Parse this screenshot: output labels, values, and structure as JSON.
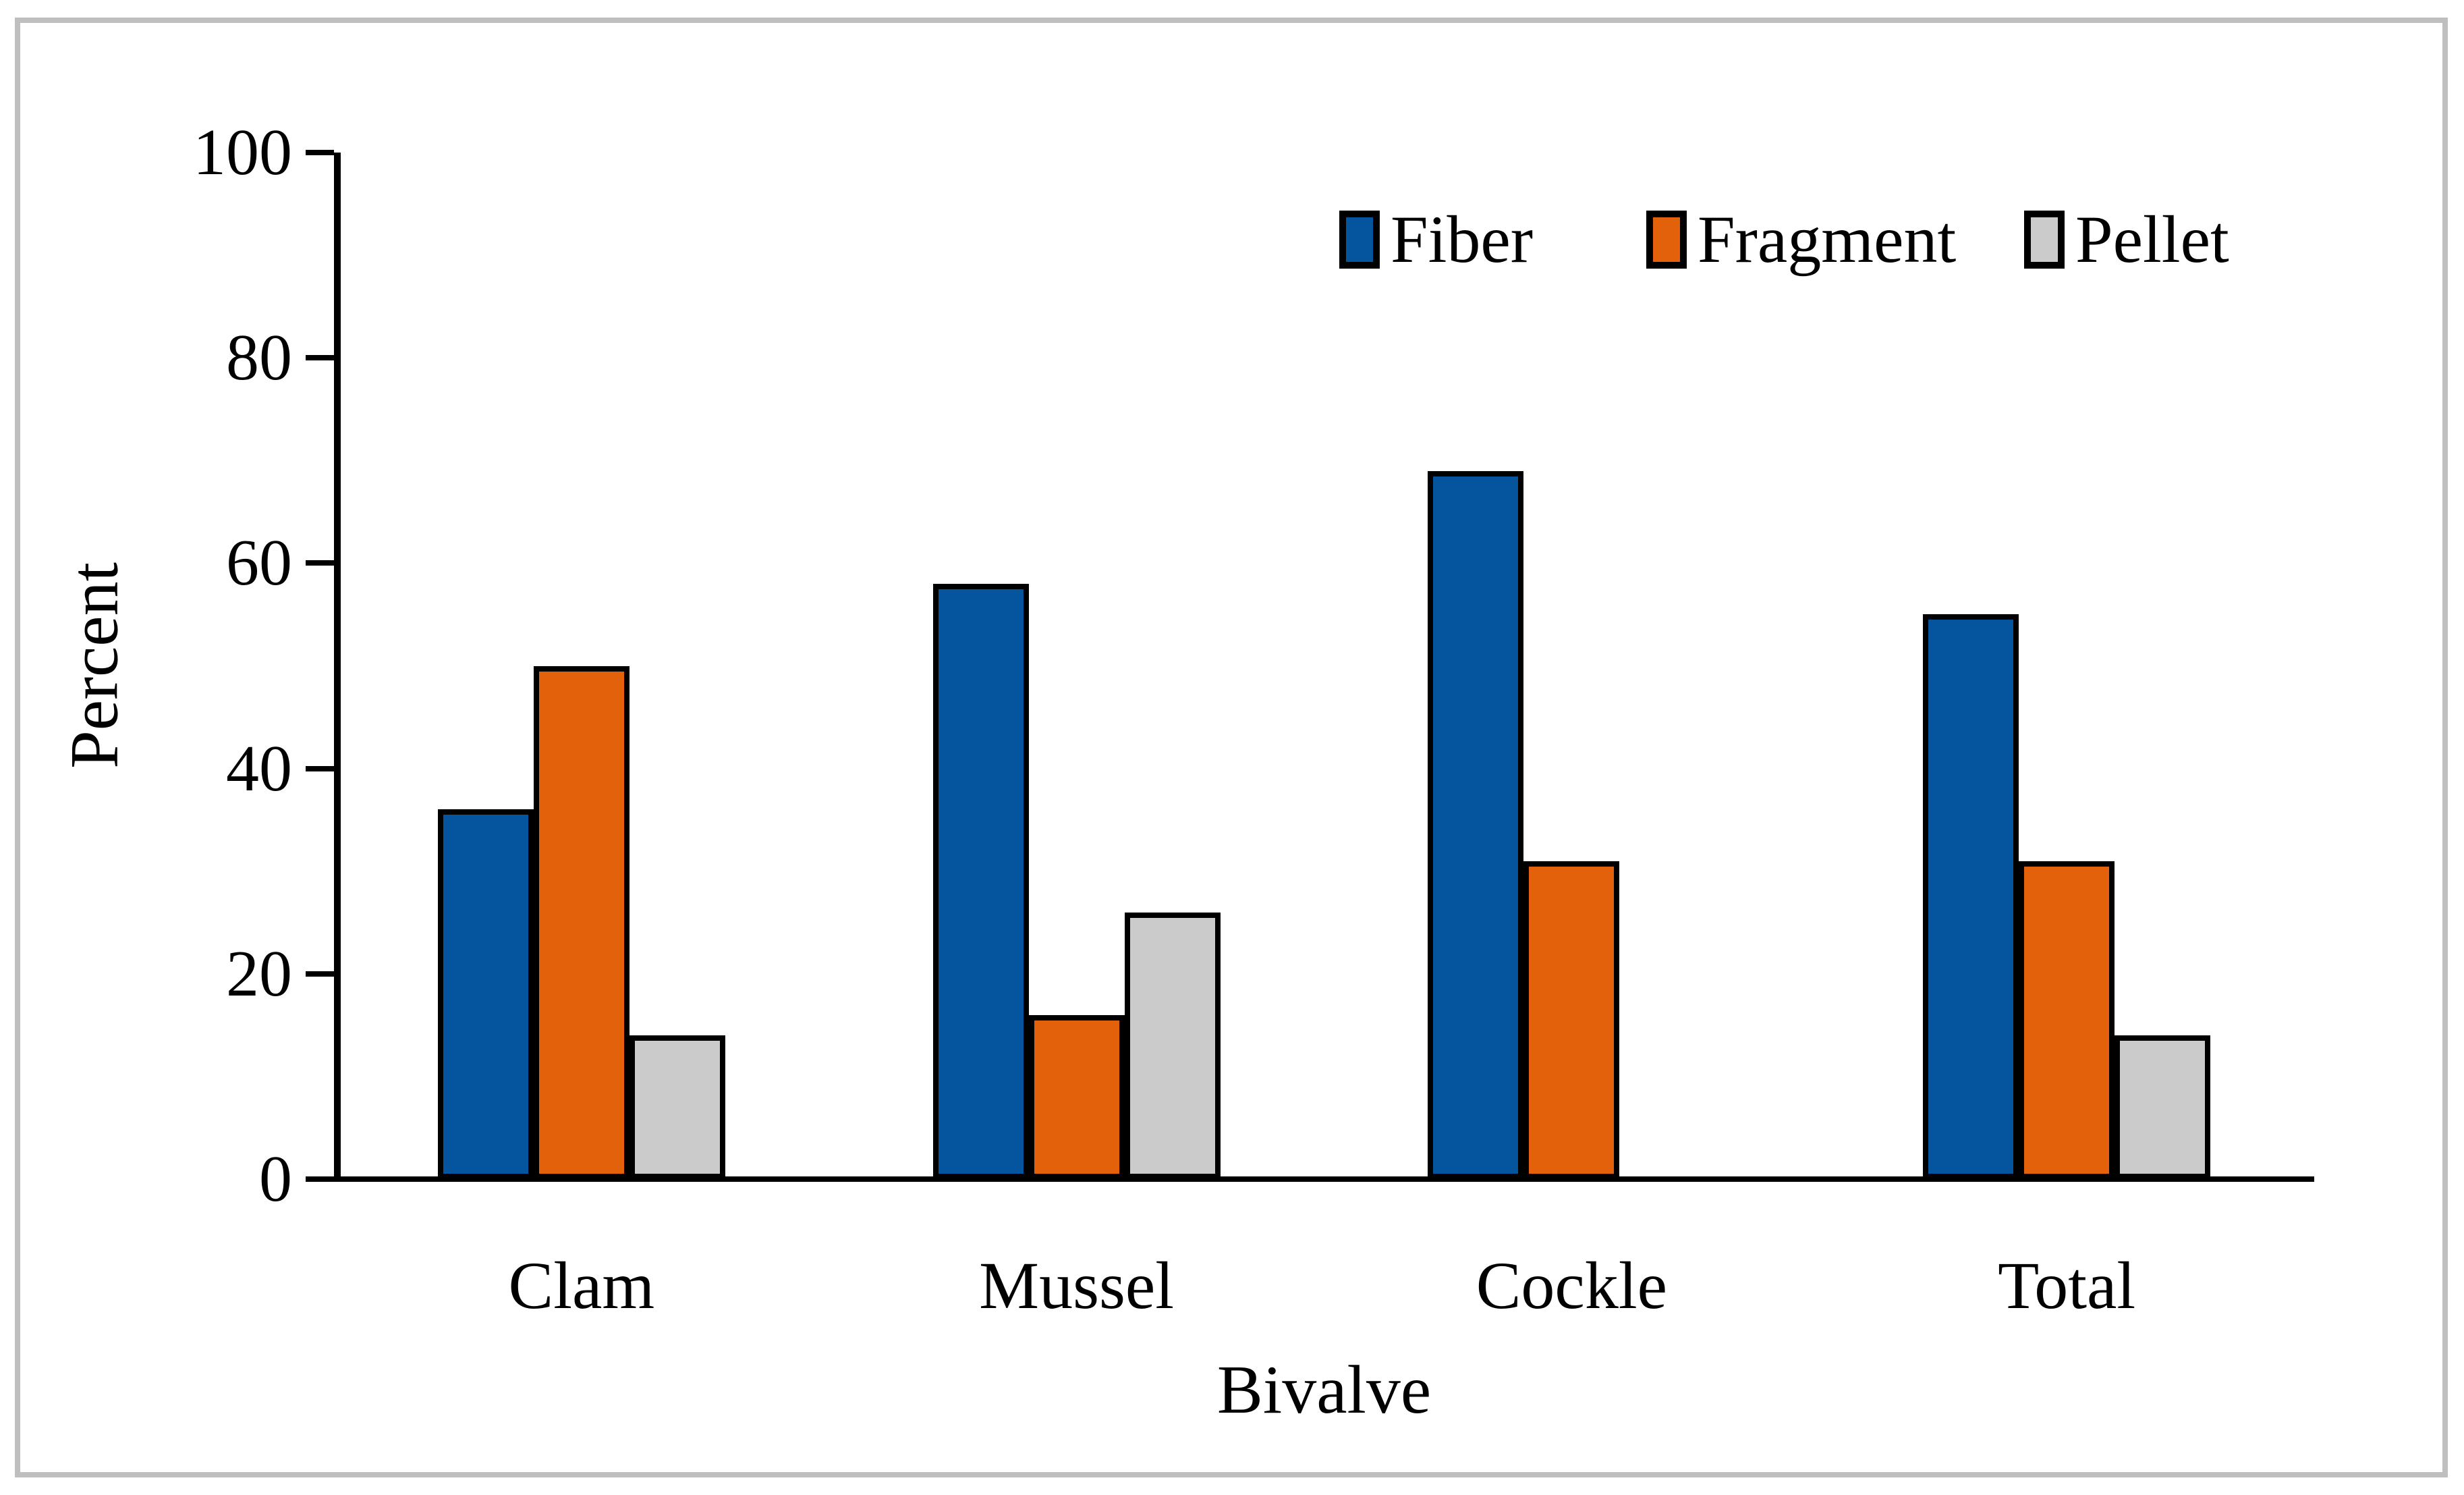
{
  "figure": {
    "background": "#FFFFFF",
    "border_color": "#BFBFBF"
  },
  "chart_data": {
    "type": "bar",
    "title": "",
    "categories": [
      "Clam",
      "Mussel",
      "Cockle",
      "Total"
    ],
    "series": [
      {
        "name": "Fiber",
        "color": "#05549E",
        "values": [
          36,
          58,
          69,
          55
        ]
      },
      {
        "name": "Fragment",
        "color": "#E4610C",
        "values": [
          50,
          16,
          31,
          31
        ]
      },
      {
        "name": "Pellet",
        "color": "#CBCBCB",
        "values": [
          14,
          26,
          0,
          14
        ]
      }
    ],
    "xlabel": "Bivalve",
    "ylabel": "Percent",
    "ylim": [
      0,
      100
    ],
    "yticks": [
      0,
      20,
      40,
      60,
      80,
      100
    ],
    "grid": false,
    "legend_position": "top-right",
    "bar_border_color": "#000000",
    "axis_color": "#000000"
  }
}
